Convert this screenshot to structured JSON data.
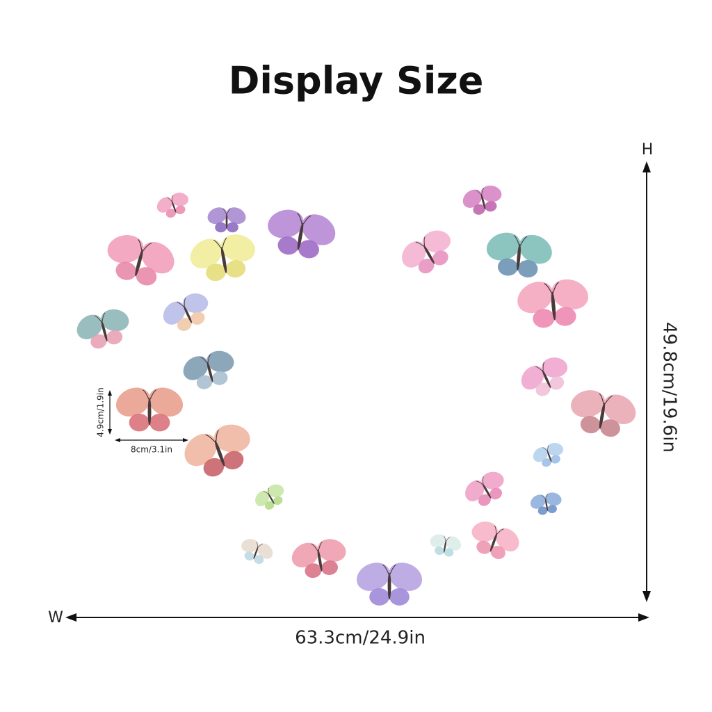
{
  "title": "Display Size",
  "height_label": "H",
  "width_label": "W",
  "height": "49.8cm/19.6in",
  "width": "63.3cm/24.9in",
  "item_height": "4.9cm/1.9in",
  "item_width": "8cm/3.1in"
}
